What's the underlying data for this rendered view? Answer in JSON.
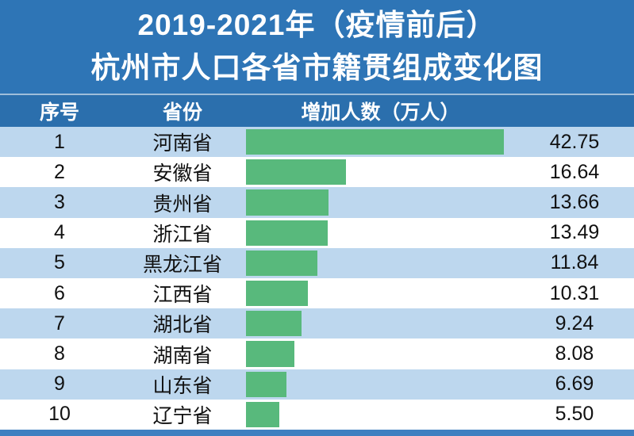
{
  "title": {
    "line1": "2019-2021年（疫情前后）",
    "line2": "杭州市人口各省市籍贯组成变化图"
  },
  "table": {
    "headers": [
      "序号",
      "省份",
      "增加人数（万人）"
    ]
  },
  "chart_data": {
    "type": "bar",
    "orientation": "horizontal",
    "title": "2019-2021年（疫情前后）杭州市人口各省市籍贯组成变化图",
    "value_label": "增加人数（万人）",
    "ranks": [
      "1",
      "2",
      "3",
      "4",
      "5",
      "6",
      "7",
      "8",
      "9",
      "10"
    ],
    "categories": [
      "河南省",
      "安徽省",
      "贵州省",
      "浙江省",
      "黑龙江省",
      "江西省",
      "湖北省",
      "湖南省",
      "山东省",
      "辽宁省"
    ],
    "values": [
      42.75,
      16.64,
      13.66,
      13.49,
      11.84,
      10.31,
      9.24,
      8.08,
      6.69,
      5.5
    ],
    "display_values": [
      "42.75",
      "16.64",
      "13.66",
      "13.49",
      "11.84",
      "10.31",
      "9.24",
      "8.08",
      "6.69",
      "5.50"
    ],
    "xlim": [
      0,
      45
    ],
    "grid": false,
    "legend": "none",
    "bar_color": "#58b97c"
  },
  "colors": {
    "title_bg": "#2e75b6",
    "header_bg": "#2b6fad",
    "row_bg": "#ffffff",
    "row_alt_bg": "#bdd7ee",
    "bar": "#58b97c",
    "text": "#111111",
    "header_text": "#ffffff",
    "footer_strip": "#3f7fc0"
  }
}
